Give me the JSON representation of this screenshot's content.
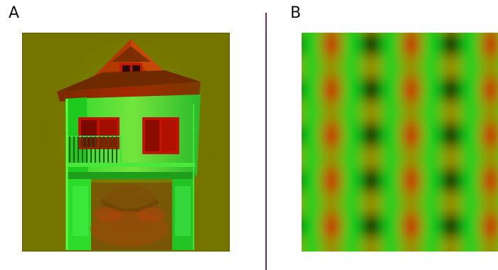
{
  "panels": [
    {
      "label": "A",
      "image": "house-overlaid-face-red-green"
    },
    {
      "label": "B",
      "image": "red-green-checkerboard-grating"
    }
  ],
  "colors": {
    "divider": "#7a2a55",
    "olive_background": "#747400",
    "red": "#c81400",
    "green": "#11d11b",
    "black": "#050000",
    "olive_yellow": "#9a8f00"
  }
}
